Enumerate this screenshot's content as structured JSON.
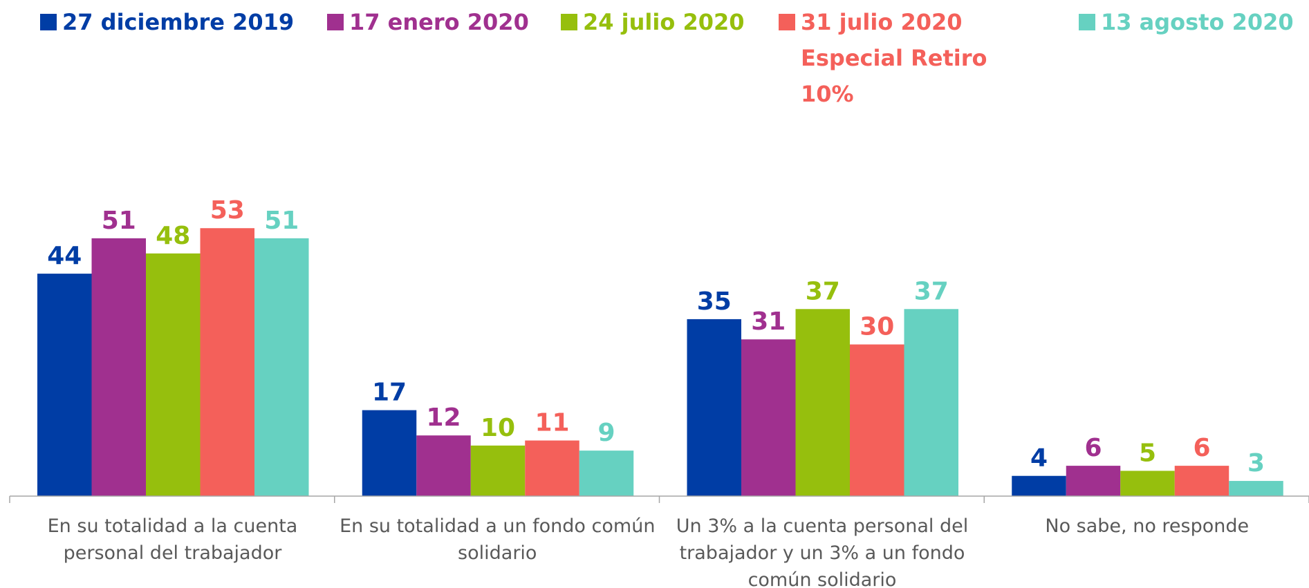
{
  "chart_data": {
    "type": "bar",
    "categories": [
      "En su totalidad a la cuenta personal del trabajador",
      "En su totalidad a un fondo común solidario",
      "Un 3% a la cuenta personal del trabajador y un 3% a un fondo común solidario",
      "No sabe, no responde"
    ],
    "series": [
      {
        "name": "27 diciembre 2019",
        "color": "#003da5",
        "values": [
          44,
          17,
          35,
          4
        ]
      },
      {
        "name": "17 enero 2020",
        "color": "#a0308f",
        "values": [
          51,
          12,
          31,
          6
        ]
      },
      {
        "name": "24 julio 2020",
        "color": "#96bf0d",
        "values": [
          48,
          10,
          37,
          5
        ]
      },
      {
        "name": "31 julio 2020 Especial Retiro 10%",
        "color": "#f4605a",
        "values": [
          53,
          11,
          30,
          6
        ]
      },
      {
        "name": "13 agosto 2020",
        "color": "#66d1c1",
        "values": [
          51,
          9,
          37,
          3
        ]
      }
    ],
    "ylim": [
      0,
      60
    ],
    "legend": "top"
  }
}
